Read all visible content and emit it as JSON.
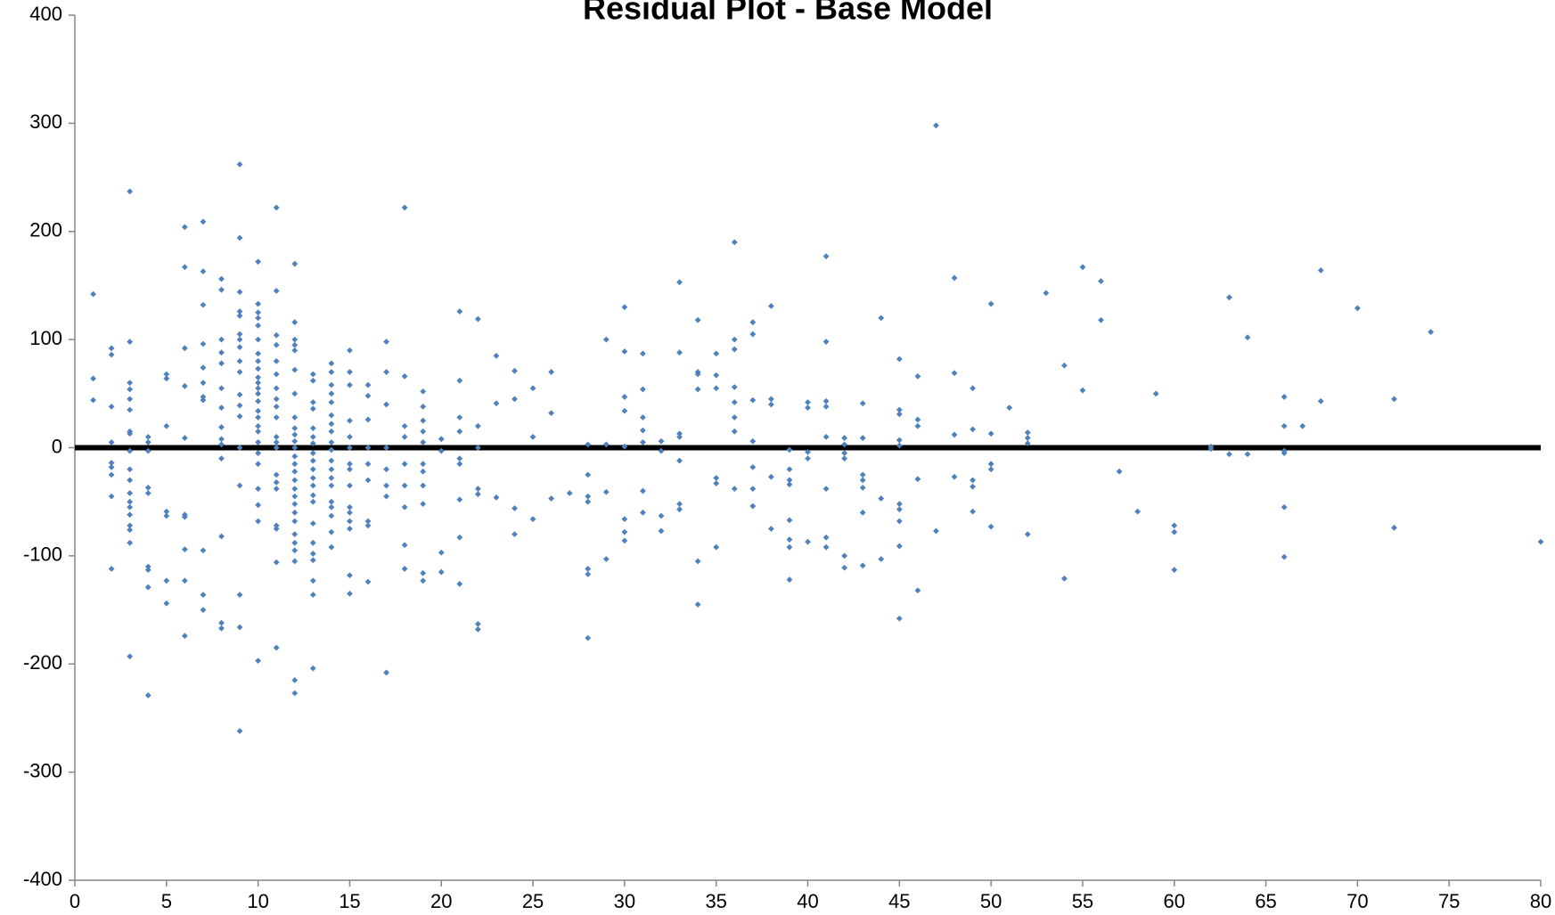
{
  "chart_data": {
    "type": "scatter",
    "title": "Residual Plot - Base Model",
    "color": "#4f81bd",
    "hline": 0,
    "hline_color": "#000000",
    "xlim": [
      0,
      80
    ],
    "xticks": [
      0,
      5,
      10,
      15,
      20,
      25,
      30,
      35,
      40,
      45,
      50,
      55,
      60,
      65,
      70,
      75,
      80
    ],
    "ylim": [
      -400,
      400
    ],
    "yticks": [
      -400,
      -300,
      -200,
      -100,
      0,
      100,
      200,
      300,
      400
    ],
    "grid": false,
    "x": [
      1,
      1,
      1,
      2,
      2,
      2,
      2,
      2,
      2,
      2,
      2,
      2,
      3,
      3,
      3,
      3,
      3,
      3,
      3,
      3,
      3,
      3,
      3,
      3,
      3,
      3,
      3,
      3,
      3,
      3,
      3,
      4,
      4,
      4,
      4,
      4,
      4,
      4,
      4,
      4,
      5,
      5,
      5,
      5,
      5,
      5,
      5,
      6,
      6,
      6,
      6,
      6,
      6,
      6,
      6,
      6,
      6,
      7,
      7,
      7,
      7,
      7,
      7,
      7,
      7,
      7,
      7,
      7,
      8,
      8,
      8,
      8,
      8,
      8,
      8,
      8,
      8,
      8,
      8,
      8,
      8,
      8,
      9,
      9,
      9,
      9,
      9,
      9,
      9,
      9,
      9,
      9,
      9,
      9,
      9,
      9,
      9,
      9,
      9,
      9,
      10,
      10,
      10,
      10,
      10,
      10,
      10,
      10,
      10,
      10,
      10,
      10,
      10,
      10,
      10,
      10,
      10,
      10,
      10,
      10,
      10,
      10,
      10,
      10,
      10,
      11,
      11,
      11,
      11,
      11,
      11,
      11,
      11,
      11,
      11,
      11,
      11,
      11,
      11,
      11,
      11,
      11,
      11,
      11,
      11,
      12,
      12,
      12,
      12,
      12,
      12,
      12,
      12,
      12,
      12,
      12,
      12,
      12,
      12,
      12,
      12,
      12,
      12,
      12,
      12,
      12,
      12,
      12,
      12,
      12,
      12,
      12,
      13,
      13,
      13,
      13,
      13,
      13,
      13,
      13,
      13,
      13,
      13,
      13,
      13,
      13,
      13,
      13,
      13,
      13,
      13,
      13,
      13,
      14,
      14,
      14,
      14,
      14,
      14,
      14,
      14,
      14,
      14,
      14,
      14,
      14,
      14,
      14,
      14,
      14,
      14,
      14,
      15,
      15,
      15,
      15,
      15,
      15,
      15,
      15,
      15,
      15,
      15,
      15,
      15,
      15,
      15,
      16,
      16,
      16,
      16,
      16,
      16,
      16,
      16,
      16,
      17,
      17,
      17,
      17,
      17,
      17,
      17,
      17,
      18,
      18,
      18,
      18,
      18,
      18,
      18,
      18,
      18,
      19,
      19,
      19,
      19,
      19,
      19,
      19,
      19,
      19,
      19,
      19,
      20,
      20,
      20,
      20,
      21,
      21,
      21,
      21,
      21,
      21,
      21,
      21,
      21,
      22,
      22,
      22,
      22,
      22,
      22,
      22,
      23,
      23,
      23,
      24,
      24,
      24,
      24,
      25,
      25,
      25,
      26,
      26,
      26,
      27,
      28,
      28,
      28,
      28,
      28,
      28,
      28,
      29,
      29,
      29,
      29,
      30,
      30,
      30,
      30,
      30,
      30,
      30,
      30,
      31,
      31,
      31,
      31,
      31,
      31,
      31,
      32,
      32,
      32,
      32,
      33,
      33,
      33,
      33,
      33,
      33,
      33,
      34,
      34,
      34,
      34,
      34,
      34,
      35,
      35,
      35,
      35,
      35,
      35,
      36,
      36,
      36,
      36,
      36,
      36,
      36,
      36,
      37,
      37,
      37,
      37,
      37,
      37,
      37,
      38,
      38,
      38,
      38,
      38,
      39,
      39,
      39,
      39,
      39,
      39,
      39,
      39,
      40,
      40,
      40,
      40,
      40,
      41,
      41,
      41,
      41,
      41,
      41,
      41,
      41,
      42,
      42,
      42,
      42,
      42,
      42,
      43,
      43,
      43,
      43,
      43,
      43,
      43,
      44,
      44,
      44,
      45,
      45,
      45,
      45,
      45,
      45,
      45,
      45,
      45,
      45,
      46,
      46,
      46,
      46,
      46,
      47,
      47,
      48,
      48,
      48,
      48,
      49,
      49,
      49,
      49,
      49,
      50,
      50,
      50,
      50,
      50,
      51,
      52,
      52,
      52,
      52,
      53,
      54,
      54,
      55,
      55,
      56,
      56,
      57,
      58,
      59,
      60,
      60,
      60,
      62,
      62,
      63,
      63,
      64,
      64,
      66,
      66,
      66,
      66,
      66,
      66,
      67,
      68,
      68,
      70,
      72,
      72,
      74,
      80
    ],
    "values": [
      142,
      64,
      44,
      92,
      86,
      38,
      5,
      -14,
      -18,
      -25,
      -45,
      -112,
      237,
      98,
      60,
      54,
      45,
      35,
      15,
      13,
      -3,
      -20,
      -30,
      -42,
      -50,
      -55,
      -62,
      -72,
      -76,
      -88,
      -193,
      10,
      5,
      -3,
      -37,
      -42,
      -110,
      -113,
      -129,
      -229,
      68,
      64,
      20,
      -59,
      -63,
      -123,
      -144,
      204,
      167,
      92,
      57,
      9,
      -62,
      -64,
      -94,
      -123,
      -174,
      209,
      163,
      132,
      96,
      74,
      60,
      47,
      44,
      -95,
      -136,
      -150,
      156,
      146,
      100,
      88,
      78,
      55,
      37,
      19,
      8,
      3,
      -10,
      -82,
      -162,
      -167,
      262,
      194,
      144,
      126,
      122,
      105,
      100,
      93,
      80,
      70,
      49,
      39,
      29,
      0,
      -35,
      -136,
      -166,
      -262,
      172,
      133,
      125,
      120,
      113,
      100,
      87,
      80,
      73,
      65,
      60,
      55,
      50,
      43,
      34,
      28,
      20,
      15,
      5,
      -5,
      -15,
      -38,
      -53,
      -68,
      -197,
      222,
      145,
      104,
      95,
      80,
      68,
      55,
      45,
      38,
      28,
      10,
      5,
      0,
      -25,
      -32,
      -38,
      -72,
      -75,
      -106,
      -185,
      170,
      116,
      100,
      95,
      90,
      72,
      50,
      28,
      18,
      12,
      6,
      0,
      -8,
      -15,
      -22,
      -30,
      -38,
      -45,
      -52,
      -60,
      -68,
      -80,
      -88,
      -95,
      -105,
      -215,
      -227,
      68,
      62,
      42,
      36,
      18,
      10,
      4,
      -5,
      -12,
      -20,
      -28,
      -35,
      -44,
      -50,
      -70,
      -88,
      -98,
      -104,
      -123,
      -136,
      -204,
      78,
      70,
      58,
      50,
      42,
      30,
      22,
      15,
      5,
      -2,
      -12,
      -20,
      -28,
      -35,
      -50,
      -55,
      -63,
      -78,
      -92,
      90,
      70,
      58,
      25,
      10,
      0,
      -15,
      -20,
      -35,
      -55,
      -60,
      -68,
      -75,
      -118,
      -135,
      58,
      48,
      26,
      0,
      -15,
      -30,
      -68,
      -72,
      -124,
      98,
      70,
      40,
      0,
      -20,
      -35,
      -45,
      -208,
      222,
      66,
      20,
      10,
      -15,
      -35,
      -55,
      -90,
      -112,
      52,
      38,
      25,
      15,
      5,
      -15,
      -22,
      -35,
      -52,
      -116,
      -123,
      8,
      -3,
      -97,
      -115,
      126,
      62,
      28,
      15,
      -10,
      -15,
      -48,
      -83,
      -126,
      119,
      20,
      0,
      -38,
      -43,
      -163,
      -168,
      85,
      41,
      -46,
      71,
      45,
      -56,
      -80,
      55,
      10,
      -66,
      70,
      32,
      -47,
      -42,
      3,
      -25,
      -45,
      -50,
      -112,
      -117,
      -176,
      100,
      3,
      -41,
      -103,
      130,
      89,
      47,
      34,
      1,
      -66,
      -78,
      -86,
      87,
      54,
      28,
      16,
      5,
      -40,
      -60,
      6,
      -3,
      -63,
      -77,
      153,
      88,
      13,
      10,
      -12,
      -52,
      -57,
      118,
      70,
      68,
      54,
      -105,
      -145,
      87,
      67,
      55,
      -28,
      -33,
      -92,
      190,
      100,
      91,
      56,
      42,
      28,
      15,
      -38,
      116,
      105,
      44,
      6,
      -18,
      -38,
      -54,
      131,
      45,
      40,
      -27,
      -75,
      -2,
      -20,
      -30,
      -34,
      -67,
      -85,
      -92,
      -122,
      42,
      37,
      -4,
      -10,
      -87,
      177,
      98,
      43,
      38,
      10,
      -38,
      -83,
      -92,
      9,
      3,
      -5,
      -10,
      -100,
      -111,
      41,
      9,
      -25,
      -30,
      -37,
      -60,
      -109,
      120,
      -47,
      -103,
      82,
      35,
      31,
      7,
      2,
      -52,
      -57,
      -68,
      -91,
      -158,
      66,
      26,
      20,
      -29,
      -132,
      298,
      -77,
      157,
      69,
      12,
      -27,
      55,
      17,
      -30,
      -36,
      -59,
      133,
      13,
      -15,
      -20,
      -73,
      37,
      14,
      9,
      4,
      -80,
      143,
      76,
      -121,
      167,
      53,
      154,
      118,
      -22,
      -59,
      50,
      -72,
      -78,
      -113,
      1,
      -1,
      139,
      -6,
      102,
      -6,
      47,
      20,
      -3,
      -5,
      -55,
      -101,
      20,
      164,
      43,
      129,
      45,
      -74,
      107,
      -87
    ]
  }
}
